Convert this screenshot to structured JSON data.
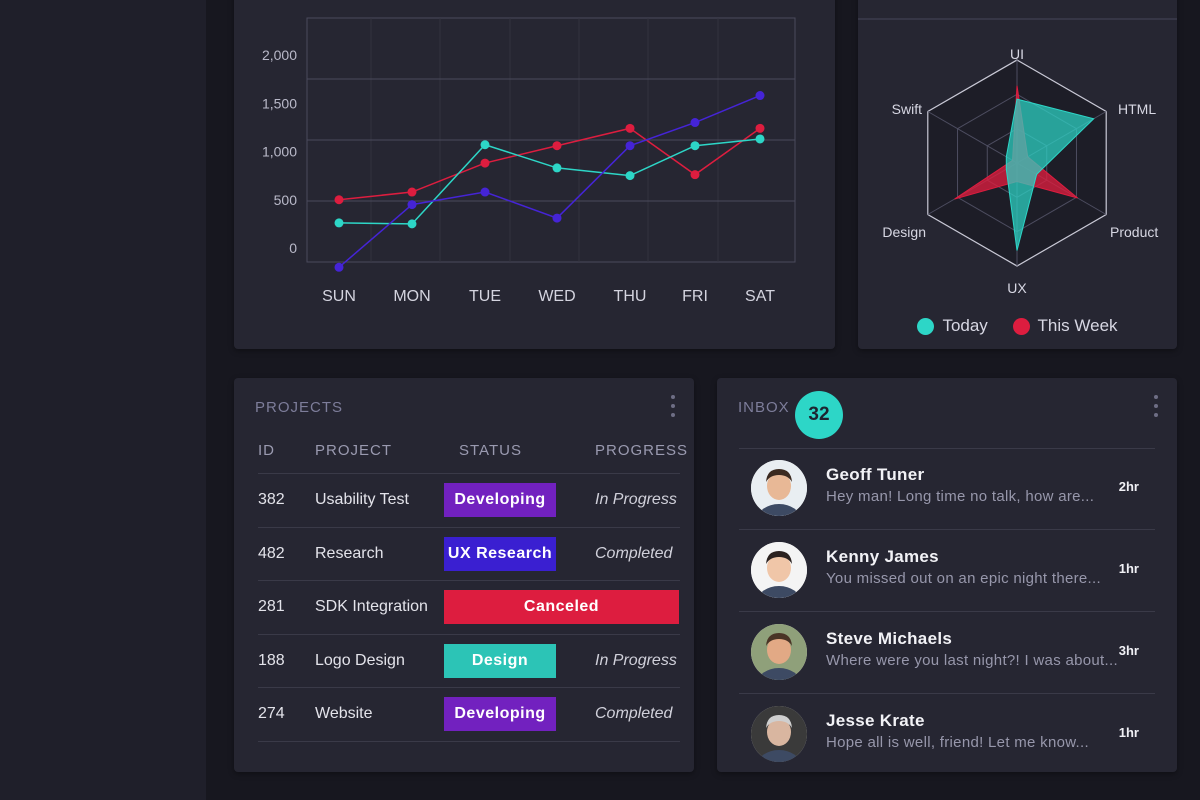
{
  "colors": {
    "teal": "#2dd6c7",
    "red": "#dd1d3f",
    "purple": "#4524d6",
    "badge_developing": "#7221bf",
    "badge_ux_research": "#3a1fd1",
    "badge_canceled": "#dd1d3f",
    "badge_design": "#2cc4b6"
  },
  "line_chart": {
    "chart_data": {
      "type": "line",
      "categories": [
        "SUN",
        "MON",
        "TUE",
        "WED",
        "THU",
        "FRI",
        "SAT"
      ],
      "y_ticks": [
        "2,000",
        "1,500",
        "1,000",
        "500",
        "0"
      ],
      "ylim": [
        0,
        2000
      ],
      "series": [
        {
          "color": "#dd1d3f",
          "values": [
            500,
            580,
            880,
            1060,
            1240,
            760,
            1240
          ]
        },
        {
          "color": "#2dd6c7",
          "values": [
            260,
            250,
            1070,
            830,
            750,
            1060,
            1130
          ]
        },
        {
          "color": "#4524d6",
          "values": [
            -200,
            450,
            580,
            310,
            1060,
            1300,
            1580
          ]
        }
      ],
      "grid": true
    }
  },
  "radar_chart": {
    "chart_data": {
      "type": "radar",
      "axes": [
        "UI",
        "HTML",
        "Product",
        "UX",
        "Design",
        "Swift"
      ],
      "max": 1,
      "series": [
        {
          "name": "Today",
          "color": "#2dd6c7",
          "values": [
            0.62,
            0.86,
            0.22,
            0.85,
            0.12,
            0.12
          ]
        },
        {
          "name": "This Week",
          "color": "#dd1d3f",
          "values": [
            0.75,
            0.12,
            0.68,
            0.18,
            0.7,
            0.05
          ]
        }
      ],
      "rings": 3,
      "legend_position": "bottom"
    },
    "legend": [
      {
        "label": "Today",
        "color": "#2dd6c7"
      },
      {
        "label": "This Week",
        "color": "#dd1d3f"
      }
    ]
  },
  "projects": {
    "title": "PROJECTS",
    "columns": {
      "id": "ID",
      "project": "PROJECT",
      "status": "STATUS",
      "progress": "PROGRESS"
    },
    "rows": [
      {
        "id": "382",
        "project": "Usability Test",
        "status": "Developing",
        "status_color": "#7221bf",
        "progress": "In Progress"
      },
      {
        "id": "482",
        "project": "Research",
        "status": "UX Research",
        "status_color": "#3a1fd1",
        "progress": "Completed"
      },
      {
        "id": "281",
        "project": "SDK Integration",
        "status": "Canceled",
        "status_color": "#dd1d3f",
        "progress": ""
      },
      {
        "id": "188",
        "project": "Logo Design",
        "status": "Design",
        "status_color": "#2cc4b6",
        "progress": "In Progress"
      },
      {
        "id": "274",
        "project": "Website",
        "status": "Developing",
        "status_color": "#7221bf",
        "progress": "Completed"
      }
    ]
  },
  "inbox": {
    "title": "INBOX",
    "count": "32",
    "messages": [
      {
        "name": "Geoff Tuner",
        "preview": "Hey man! Long time no talk, how are...",
        "time": "2hr",
        "avatar_icon": "person-avatar-icon"
      },
      {
        "name": "Kenny James",
        "preview": "You missed out on an epic night there...",
        "time": "1hr",
        "avatar_icon": "person-avatar-icon"
      },
      {
        "name": "Steve Michaels",
        "preview": "Where were you last night?! I was about...",
        "time": "3hr",
        "avatar_icon": "person-avatar-icon"
      },
      {
        "name": "Jesse Krate",
        "preview": "Hope all is well, friend! Let me know...",
        "time": "1hr",
        "avatar_icon": "person-avatar-icon"
      }
    ]
  }
}
